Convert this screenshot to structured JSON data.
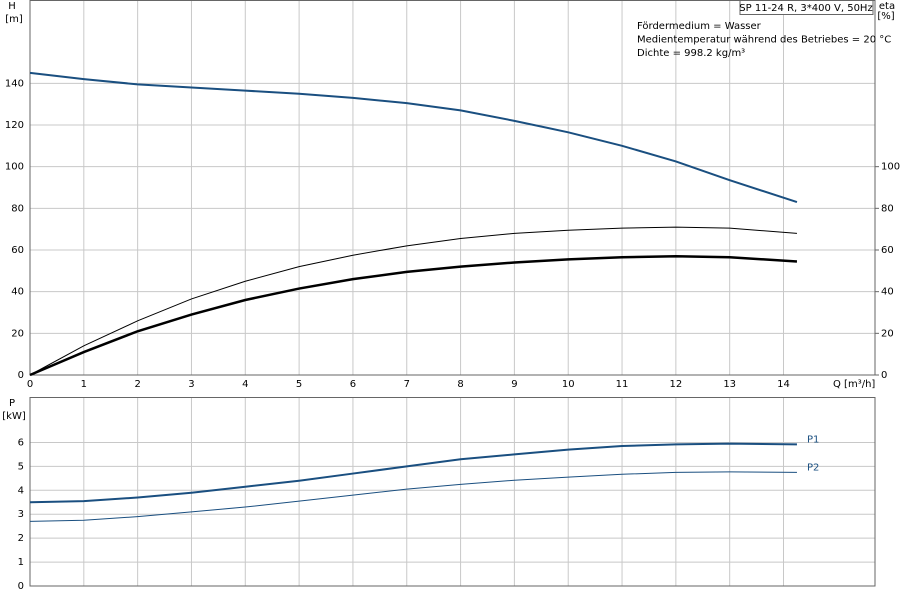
{
  "chart_data": [
    {
      "type": "line",
      "title": "SP 11-24 R, 3*400 V, 50Hz",
      "annotations": [
        "Fördermedium = Wasser",
        "Medientemperatur während des Betriebes = 20 °C",
        "Dichte = 998.2 kg/m³"
      ],
      "y_label": "H",
      "y_unit": "[m]",
      "y2_label": "eta",
      "y2_unit": "[%]",
      "x_label": "Q [m³/h]",
      "x": [
        0,
        1,
        2,
        3,
        4,
        5,
        6,
        7,
        8,
        9,
        10,
        11,
        12,
        13,
        14.25
      ],
      "xlim": [
        0,
        15.7
      ],
      "xticks": [
        0,
        1,
        2,
        3,
        4,
        5,
        6,
        7,
        8,
        9,
        10,
        11,
        12,
        13,
        14
      ],
      "ylim": [
        0,
        180
      ],
      "yticks": [
        0,
        20,
        40,
        60,
        80,
        100,
        120,
        140
      ],
      "y2lim": [
        0,
        180
      ],
      "y2ticks": [
        0,
        20,
        40,
        60,
        80,
        100
      ],
      "grid": true,
      "series": [
        {
          "color": "#1a4f80",
          "values": [
            145,
            142,
            139.5,
            138,
            136.5,
            135,
            133,
            130.5,
            127,
            122,
            116.5,
            110,
            102.5,
            93.5,
            83
          ]
        },
        {
          "color": "#000000",
          "axis": "y2",
          "values": [
            0,
            11,
            21,
            29,
            36,
            41.5,
            46,
            49.5,
            52,
            54,
            55.5,
            56.5,
            57,
            56.5,
            54.5
          ]
        },
        {
          "color": "#000000",
          "axis": "y2",
          "values": [
            0,
            14,
            26,
            36.5,
            45,
            52,
            57.5,
            62,
            65.5,
            68,
            69.5,
            70.5,
            71,
            70.5,
            68
          ]
        }
      ]
    },
    {
      "type": "line",
      "y_label": "P",
      "y_unit": "[kW]",
      "x": [
        0,
        1,
        2,
        3,
        4,
        5,
        6,
        7,
        8,
        9,
        10,
        11,
        12,
        13,
        14.25
      ],
      "xlim": [
        0,
        15.7
      ],
      "xticks": [
        0,
        1,
        2,
        3,
        4,
        5,
        6,
        7,
        8,
        9,
        10,
        11,
        12,
        13,
        14
      ],
      "ylim": [
        0,
        7.9
      ],
      "yticks": [
        0,
        1,
        2,
        3,
        4,
        5,
        6
      ],
      "grid": true,
      "series": [
        {
          "name": "P1",
          "color": "#1a4f80",
          "values": [
            3.5,
            3.55,
            3.7,
            3.9,
            4.15,
            4.4,
            4.7,
            5.0,
            5.3,
            5.5,
            5.7,
            5.85,
            5.92,
            5.95,
            5.92
          ]
        },
        {
          "name": "P2",
          "color": "#1a4f80",
          "values": [
            2.7,
            2.75,
            2.9,
            3.1,
            3.3,
            3.55,
            3.8,
            4.05,
            4.25,
            4.42,
            4.55,
            4.67,
            4.75,
            4.77,
            4.75
          ]
        }
      ]
    }
  ]
}
